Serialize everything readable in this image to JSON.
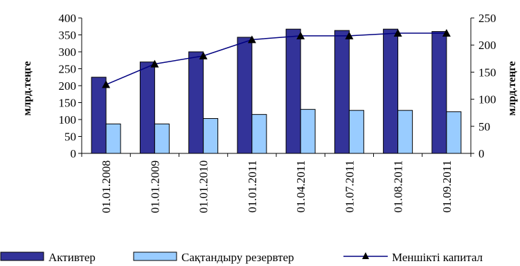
{
  "chart_data": {
    "type": "bar",
    "categories": [
      "01.01.2008",
      "01.01.2009",
      "01.01.2010",
      "01.01.2011",
      "01.04.2011",
      "01.07.2011",
      "01.08.2011",
      "01.09.2011"
    ],
    "series": [
      {
        "name": "Активтер",
        "type": "bar",
        "axis": "left",
        "color": "#333399",
        "values": [
          225,
          270,
          300,
          343,
          367,
          363,
          367,
          360
        ]
      },
      {
        "name": "Сақтандыру резервтер",
        "type": "bar",
        "axis": "left",
        "color": "#99CCFF",
        "values": [
          87,
          87,
          103,
          115,
          130,
          127,
          127,
          123
        ]
      },
      {
        "name": "Меншікті капитал",
        "type": "line",
        "axis": "right",
        "color": "#000080",
        "marker": "triangle",
        "values": [
          127,
          165,
          180,
          210,
          217,
          217,
          222,
          222
        ]
      }
    ],
    "y_left": {
      "label": "млрд.теңге",
      "min": 0,
      "max": 400,
      "ticks": [
        0,
        50,
        100,
        150,
        200,
        250,
        300,
        350,
        400
      ]
    },
    "y_right": {
      "label": "млрд.теңге",
      "min": 0,
      "max": 250,
      "ticks": [
        0,
        50,
        100,
        150,
        200,
        250
      ]
    },
    "legend": {
      "placement": "bottom"
    },
    "grid": false
  }
}
